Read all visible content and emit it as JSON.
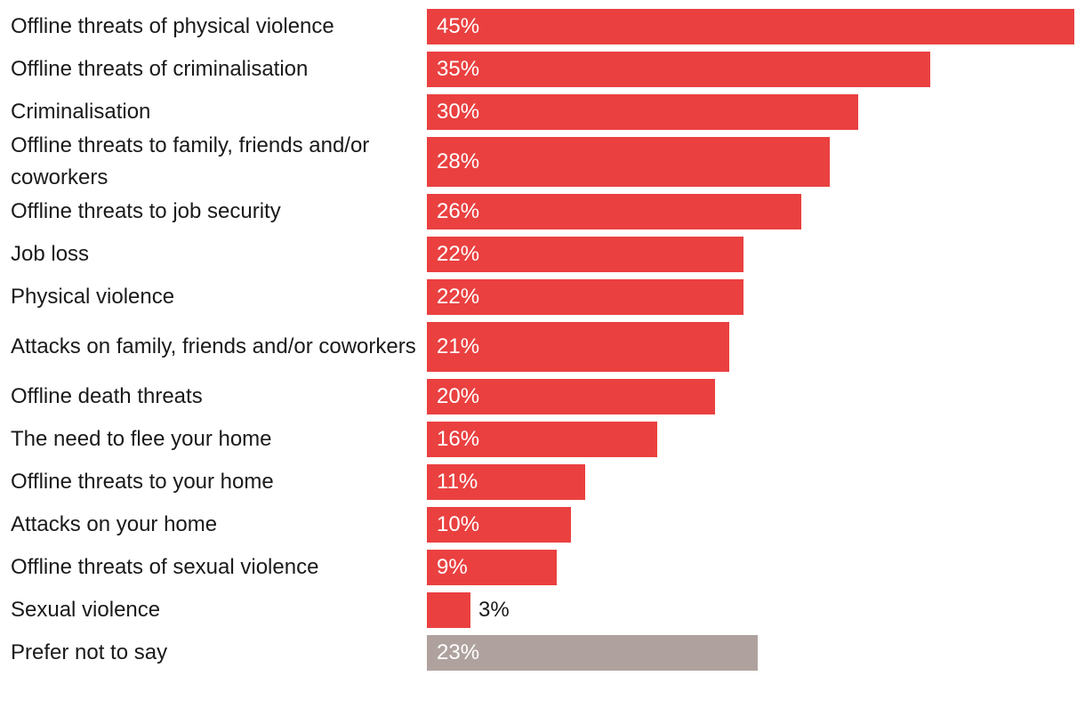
{
  "chart_data": {
    "type": "bar",
    "orientation": "horizontal",
    "categories": [
      "Offline threats of physical violence",
      "Offline threats of criminalisation",
      "Criminalisation",
      "Offline threats to family, friends and/or coworkers",
      "Offline threats to job security",
      "Job loss",
      "Physical violence",
      "Attacks on family, friends and/or coworkers",
      "Offline death threats",
      "The need to flee your home",
      "Offline threats to your home",
      "Attacks on your home",
      "Offline threats of sexual violence",
      "Sexual violence",
      "Prefer not to say"
    ],
    "values": [
      45,
      35,
      30,
      28,
      26,
      22,
      22,
      21,
      20,
      16,
      11,
      10,
      9,
      3,
      23
    ],
    "value_labels": [
      "45%",
      "35%",
      "30%",
      "28%",
      "26%",
      "22%",
      "22%",
      "21%",
      "20%",
      "16%",
      "11%",
      "10%",
      "9%",
      "3%",
      "23%"
    ],
    "bar_colors": [
      "#ea4040",
      "#ea4040",
      "#ea4040",
      "#ea4040",
      "#ea4040",
      "#ea4040",
      "#ea4040",
      "#ea4040",
      "#ea4040",
      "#ea4040",
      "#ea4040",
      "#ea4040",
      "#ea4040",
      "#ea4040",
      "#afa29e"
    ],
    "unit": "%",
    "xlim": [
      0,
      45
    ],
    "grid": false,
    "legend": "none"
  }
}
